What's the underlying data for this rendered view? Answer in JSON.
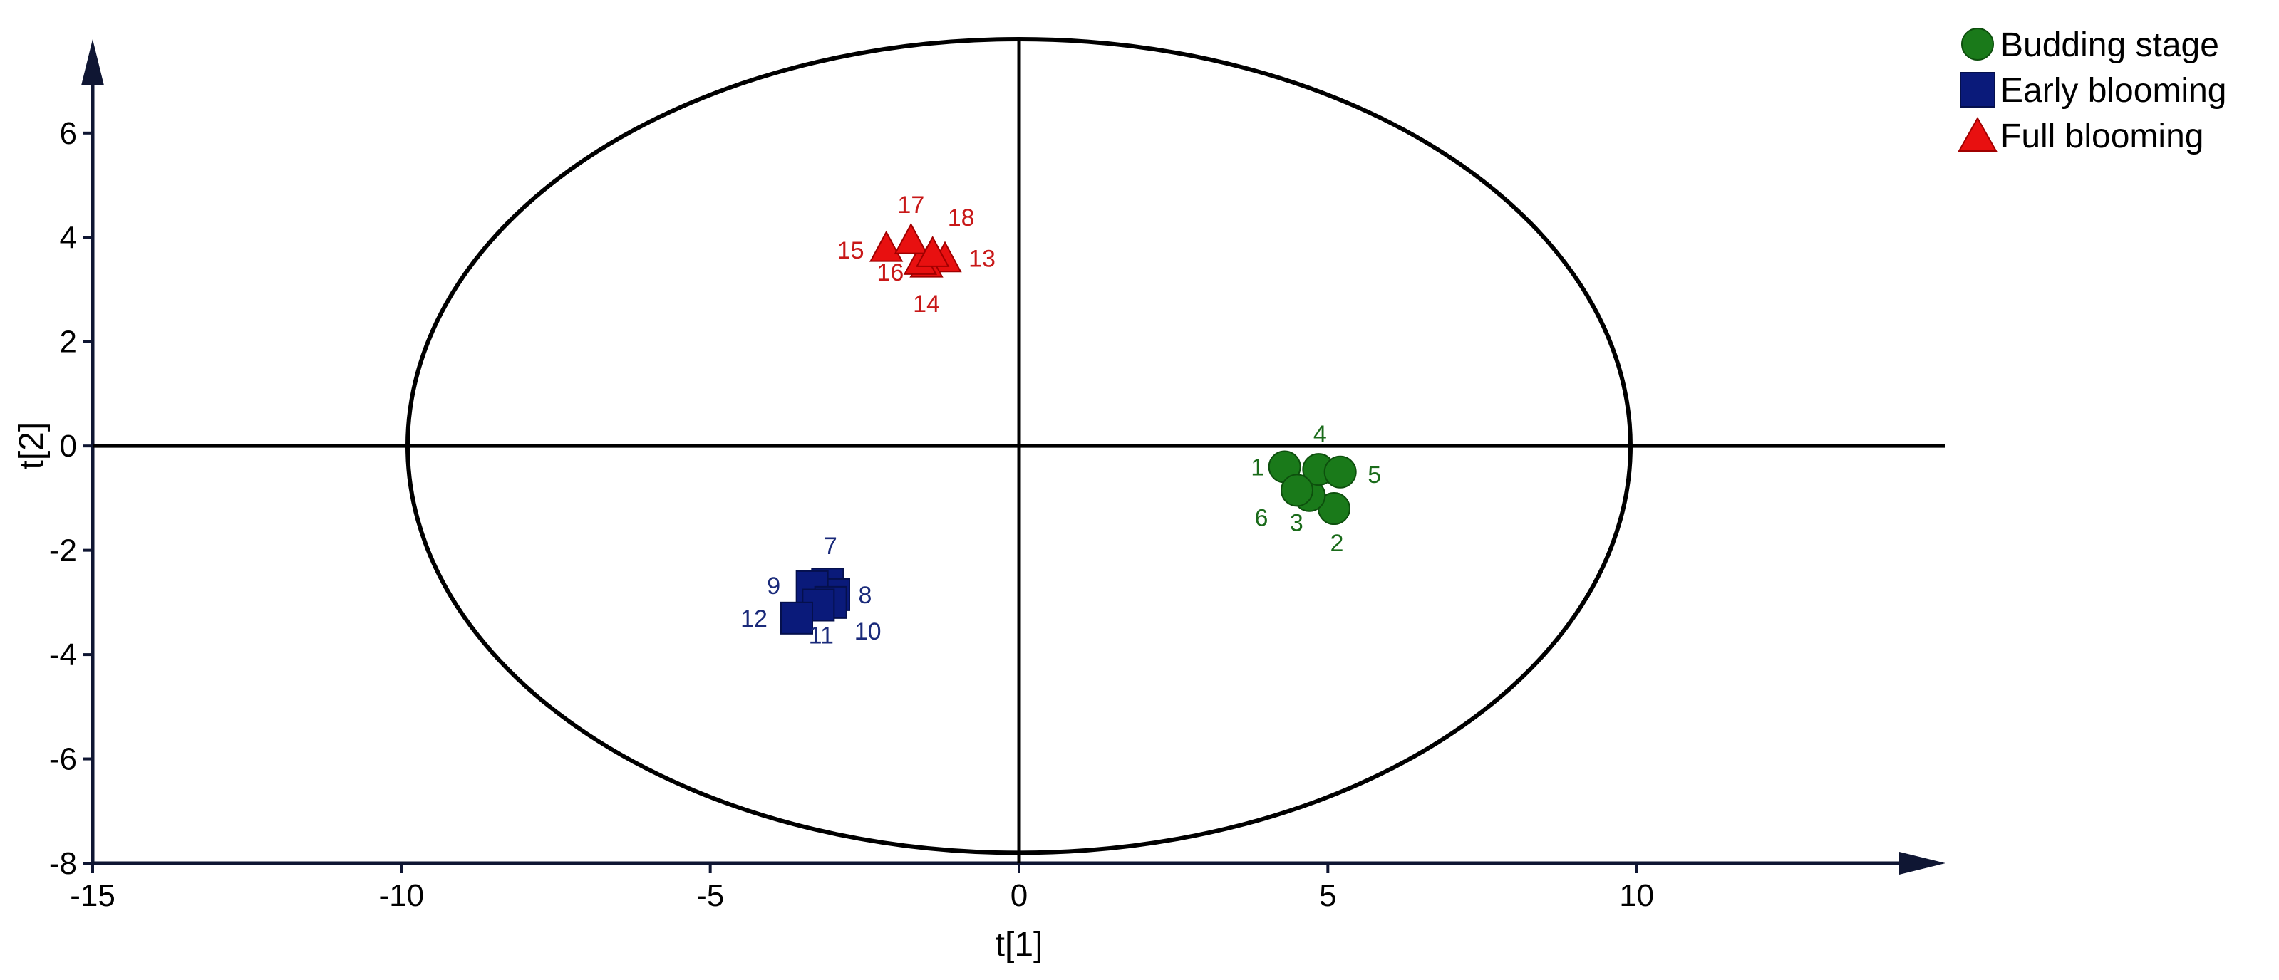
{
  "chart_data": {
    "type": "scatter",
    "xlabel": "t[1]",
    "ylabel": "t[2]",
    "xlim": [
      -15,
      15
    ],
    "ylim": [
      -8,
      7.8
    ],
    "x_ticks": [
      "-15",
      "-10",
      "-5",
      "0",
      "5",
      "10"
    ],
    "y_ticks": [
      "6",
      "4",
      "2",
      "0",
      "-2",
      "-4",
      "-6",
      "-8"
    ],
    "ellipse": {
      "cx": 0,
      "cy": 0,
      "rx": 9.9,
      "ry": 7.8
    },
    "legend_position": "top-right",
    "series": [
      {
        "name": "Budding stage",
        "marker": "circle",
        "color": "#1a7a1a",
        "label_color": "#1a6b1a",
        "points": [
          {
            "label": "1",
            "x": 4.3,
            "y": -0.4
          },
          {
            "label": "2",
            "x": 5.1,
            "y": -1.2
          },
          {
            "label": "3",
            "x": 4.7,
            "y": -0.95
          },
          {
            "label": "4",
            "x": 4.85,
            "y": -0.45
          },
          {
            "label": "5",
            "x": 5.2,
            "y": -0.5
          },
          {
            "label": "6",
            "x": 4.5,
            "y": -0.85
          }
        ]
      },
      {
        "name": "Early blooming",
        "marker": "square",
        "color": "#0a1a7a",
        "label_color": "#1a2a7a",
        "points": [
          {
            "label": "7",
            "x": -3.1,
            "y": -2.65
          },
          {
            "label": "8",
            "x": -3.0,
            "y": -2.85
          },
          {
            "label": "9",
            "x": -3.35,
            "y": -2.7
          },
          {
            "label": "10",
            "x": -3.05,
            "y": -3.0
          },
          {
            "label": "11",
            "x": -3.25,
            "y": -3.05
          },
          {
            "label": "12",
            "x": -3.6,
            "y": -3.3
          }
        ]
      },
      {
        "name": "Full blooming",
        "marker": "triangle",
        "color": "#e81010",
        "label_color": "#c81818",
        "points": [
          {
            "label": "13",
            "x": -1.2,
            "y": 3.6
          },
          {
            "label": "14",
            "x": -1.5,
            "y": 3.5
          },
          {
            "label": "15",
            "x": -2.15,
            "y": 3.8
          },
          {
            "label": "16",
            "x": -1.6,
            "y": 3.55
          },
          {
            "label": "17",
            "x": -1.75,
            "y": 3.95
          },
          {
            "label": "18",
            "x": -1.4,
            "y": 3.7
          }
        ]
      }
    ]
  }
}
